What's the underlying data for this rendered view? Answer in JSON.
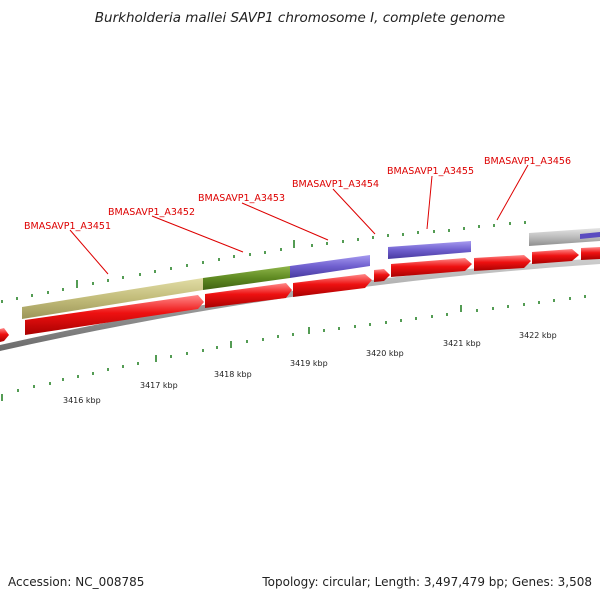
{
  "map": {
    "title": "Burkholderia mallei SAVP1 chromosome I, complete genome",
    "accession": "Accession: NC_008785",
    "summary": "Topology: circular; Length: 3,497,479 bp; Genes: 3,508"
  },
  "genes": [
    {
      "label": "BMASAVP1_A3451"
    },
    {
      "label": "BMASAVP1_A3452"
    },
    {
      "label": "BMASAVP1_A3453"
    },
    {
      "label": "BMASAVP1_A3454"
    },
    {
      "label": "BMASAVP1_A3455"
    },
    {
      "label": "BMASAVP1_A3456"
    }
  ],
  "scale": [
    {
      "label": "3416 kbp"
    },
    {
      "label": "3417 kbp"
    },
    {
      "label": "3418 kbp"
    },
    {
      "label": "3419 kbp"
    },
    {
      "label": "3420 kbp"
    },
    {
      "label": "3421 kbp"
    },
    {
      "label": "3422 kbp"
    }
  ],
  "colors": {
    "cds": "#ee1111",
    "khaki": "#c2bc7a",
    "olive": "#5f8a22",
    "purple": "#6f5fce",
    "grey": "#bdbdbd",
    "backbone": "#8a8a8a",
    "tick": "#1a7a1a",
    "label": "#dd0000"
  }
}
